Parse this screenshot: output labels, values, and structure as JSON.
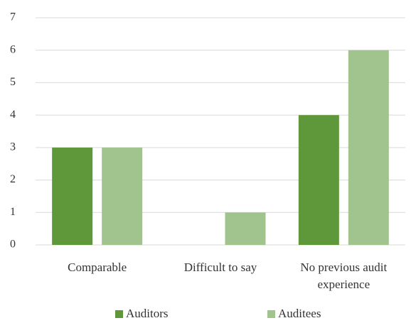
{
  "chart_data": {
    "type": "bar",
    "categories": [
      "Comparable",
      "Difficult to say",
      "No previous audit experience"
    ],
    "series": [
      {
        "name": "Auditors",
        "color": "#5f983b",
        "values": [
          3,
          0,
          4
        ]
      },
      {
        "name": "Auditees",
        "color": "#a1c48e",
        "values": [
          3,
          1,
          6
        ]
      }
    ],
    "ylim": [
      0,
      7
    ],
    "yticks": [
      0,
      1,
      2,
      3,
      4,
      5,
      6,
      7
    ],
    "grid": true,
    "legend": "bottom"
  }
}
